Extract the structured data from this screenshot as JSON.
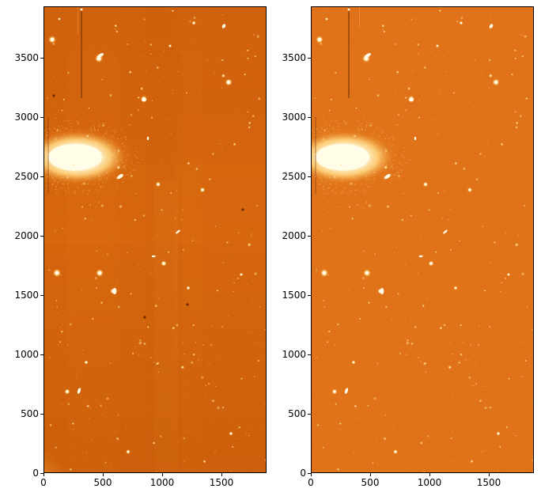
{
  "figure": {
    "panels": [
      {
        "id": "left",
        "variant": "raw-with-background-gradient",
        "colormap": [
          "#7a2a00",
          "#c45a0a",
          "#e37b1c",
          "#ffd27a",
          "#fffde8"
        ],
        "x_ticks": [
          "0",
          "500",
          "1000",
          "1500"
        ],
        "y_ticks": [
          "0",
          "500",
          "1000",
          "1500",
          "2000",
          "2500",
          "3000",
          "3500"
        ]
      },
      {
        "id": "right",
        "variant": "background-subtracted",
        "colormap": [
          "#7a2a00",
          "#c45a0a",
          "#e37b1c",
          "#ffd27a",
          "#fffde8"
        ],
        "x_ticks": [
          "0",
          "500",
          "1000",
          "1500"
        ],
        "y_ticks": [
          "0",
          "500",
          "1000",
          "1500",
          "2000",
          "2500",
          "3000",
          "3500"
        ]
      }
    ],
    "x_range": [
      0,
      1880
    ],
    "y_range": [
      0,
      3930
    ],
    "x_tick_values": [
      0,
      500,
      1000,
      1500
    ],
    "y_tick_values": [
      0,
      500,
      1000,
      1500,
      2000,
      2500,
      3000,
      3500
    ],
    "galaxy_center": [
      280,
      2660
    ]
  }
}
